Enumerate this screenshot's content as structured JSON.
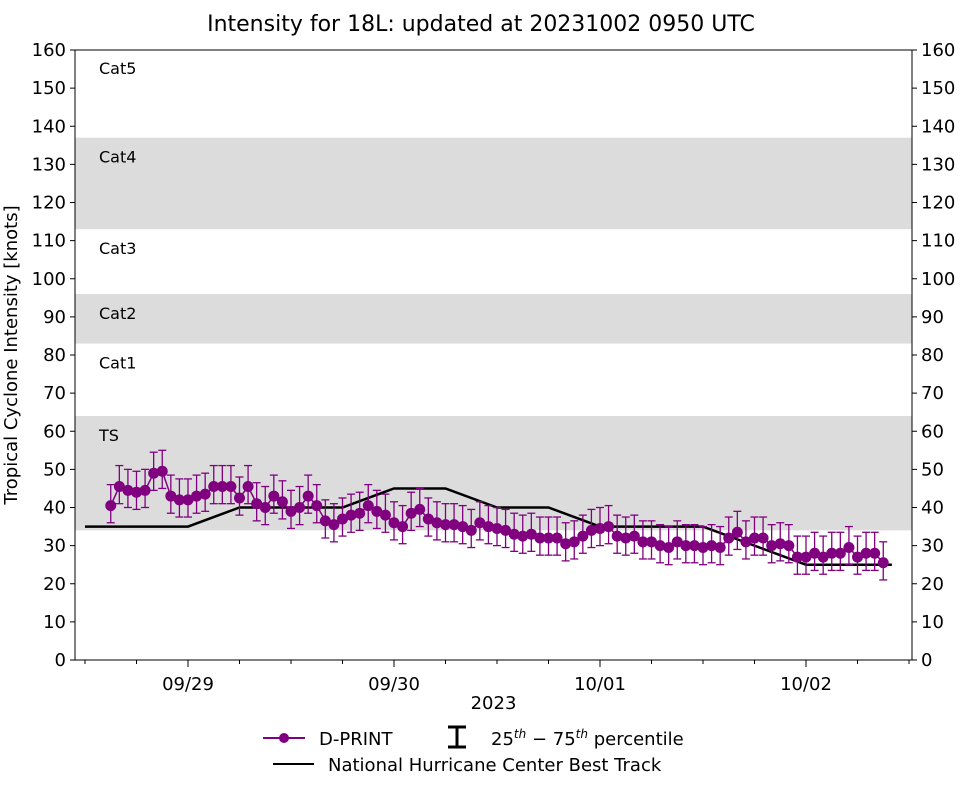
{
  "chart_data": {
    "type": "line",
    "title": "Intensity for 18L: updated at 20231002 0950 UTC",
    "ylabel": "Tropical Cyclone Intensity [knots]",
    "xlabel": "2023",
    "ylim": [
      0,
      160
    ],
    "yticks": [
      0,
      10,
      20,
      30,
      40,
      50,
      60,
      70,
      80,
      90,
      100,
      110,
      120,
      130,
      140,
      150,
      160
    ],
    "xlim_hours_from_0929_00Z": [
      -26,
      84
    ],
    "xticks": [
      {
        "hour": 0,
        "label": "09/29"
      },
      {
        "hour": 24,
        "label": "09/30"
      },
      {
        "hour": 48,
        "label": "10/01"
      },
      {
        "hour": 72,
        "label": "10/02"
      }
    ],
    "bands": [
      {
        "label": "TS",
        "lo": 34,
        "hi": 64,
        "shaded": true
      },
      {
        "label": "Cat1",
        "lo": 64,
        "hi": 83,
        "shaded": false
      },
      {
        "label": "Cat2",
        "lo": 83,
        "hi": 96,
        "shaded": true
      },
      {
        "label": "Cat3",
        "lo": 96,
        "hi": 113,
        "shaded": false
      },
      {
        "label": "Cat4",
        "lo": 113,
        "hi": 137,
        "shaded": true
      },
      {
        "label": "Cat5",
        "lo": 137,
        "hi": 160,
        "shaded": false
      }
    ],
    "dprint": {
      "name": "D-PRINT",
      "color": "#800080",
      "start_hour": -9,
      "values": [
        40.5,
        45.5,
        44.5,
        44,
        44.5,
        49,
        49.5,
        43,
        42,
        42,
        43,
        43.5,
        45.5,
        45.5,
        45.5,
        42.5,
        45.5,
        41,
        40,
        43,
        41.5,
        39,
        40,
        43,
        40.5,
        36.5,
        35.5,
        37,
        38,
        38.5,
        40.5,
        39,
        38,
        36,
        35,
        38.5,
        39.5,
        37,
        36,
        35.5,
        35.5,
        35,
        34,
        36,
        35,
        34.5,
        34,
        33,
        32.5,
        33,
        32,
        32,
        32,
        30.5,
        31,
        32.5,
        34,
        34.5,
        35,
        32.5,
        32,
        32.5,
        31,
        31,
        30,
        29.5,
        31,
        30,
        30,
        29.5,
        30,
        29.5,
        32,
        33.5,
        31,
        32,
        32,
        30,
        30.5,
        30,
        27,
        27,
        28,
        27,
        28,
        28,
        29.5,
        27,
        28,
        28,
        25.5
      ],
      "p25_offset": -4.5,
      "p75_offset": 5.5
    },
    "best_track": {
      "name": "National Hurricane Center Best Track",
      "color": "#000000",
      "points": [
        [
          -12,
          35
        ],
        [
          0,
          35
        ],
        [
          6,
          40
        ],
        [
          18,
          40
        ],
        [
          24,
          45
        ],
        [
          30,
          45
        ],
        [
          36,
          40
        ],
        [
          42,
          40
        ],
        [
          48,
          35
        ],
        [
          60,
          35
        ],
        [
          72,
          25
        ],
        [
          82,
          25
        ]
      ]
    },
    "legend": {
      "dprint": "D-PRINT",
      "percentile": "25th − 75th percentile",
      "pct_base": "25",
      "pct_sup1": "th",
      "pct_mid": " − 75",
      "pct_sup2": "th",
      "pct_tail": " percentile",
      "best": "National Hurricane Center Best Track"
    }
  }
}
